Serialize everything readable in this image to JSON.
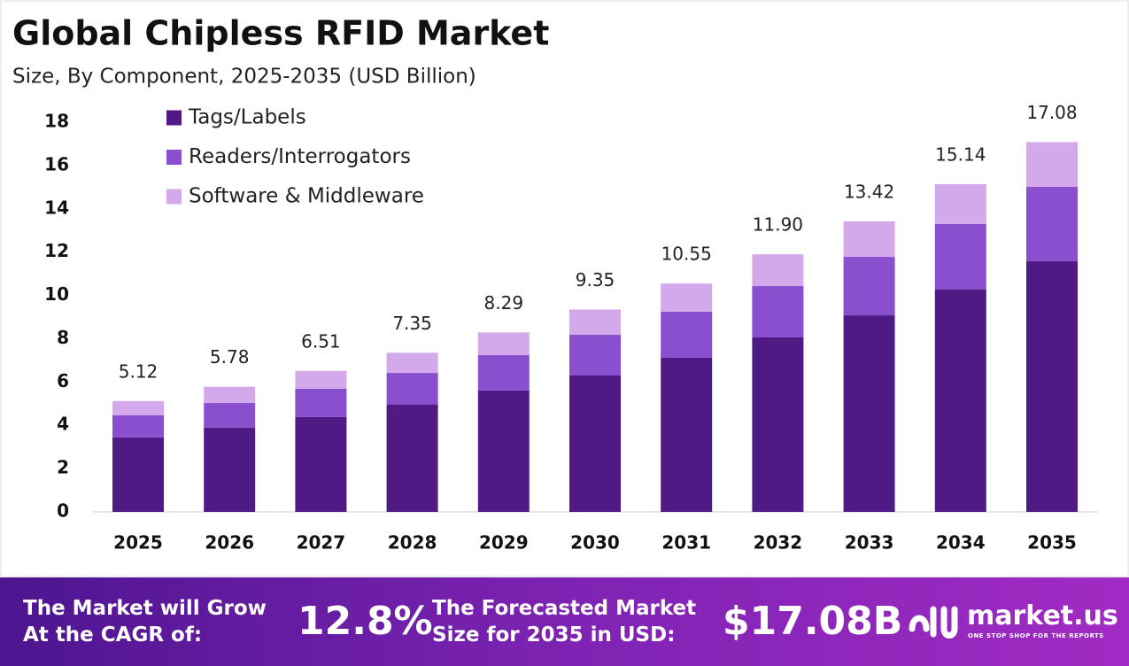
{
  "chart_data": {
    "type": "stacked-bar",
    "title": "Global Chipless RFID Market",
    "subtitle": "Size, By Component, 2025-2035 (USD Billion)",
    "categories": [
      "2025",
      "2026",
      "2027",
      "2028",
      "2029",
      "2030",
      "2031",
      "2032",
      "2033",
      "2034",
      "2035"
    ],
    "series": [
      {
        "name": "Tags/Labels",
        "color": "#4f1a83",
        "values": [
          3.44,
          3.89,
          4.38,
          4.95,
          5.61,
          6.3,
          7.12,
          8.06,
          9.08,
          10.27,
          11.58
        ]
      },
      {
        "name": "Readers/Interrogators",
        "color": "#8a4fcf",
        "values": [
          1.02,
          1.14,
          1.31,
          1.47,
          1.63,
          1.88,
          2.13,
          2.37,
          2.7,
          3.03,
          3.44
        ]
      },
      {
        "name": "Software & Middleware",
        "color": "#d3a9ec",
        "values": [
          0.66,
          0.75,
          0.82,
          0.93,
          1.05,
          1.17,
          1.3,
          1.47,
          1.64,
          1.84,
          2.06
        ]
      }
    ],
    "totals": [
      5.12,
      5.78,
      6.51,
      7.35,
      8.29,
      9.35,
      10.55,
      11.9,
      13.42,
      15.14,
      17.08
    ],
    "total_labels": [
      "5.12",
      "5.78",
      "6.51",
      "7.35",
      "8.29",
      "9.35",
      "10.55",
      "11.90",
      "13.42",
      "15.14",
      "17.08"
    ],
    "ylim": [
      0,
      18
    ],
    "yticks": [
      0,
      2,
      4,
      6,
      8,
      10,
      12,
      14,
      16,
      18
    ],
    "grid": false,
    "legend": "top-left"
  },
  "footer": {
    "cagr_label_line1": "The Market will Grow",
    "cagr_label_line2": "At the CAGR of:",
    "cagr_value": "12.8%",
    "forecast_label_line1": "The Forecasted Market",
    "forecast_label_line2": "Size for 2035 in USD:",
    "forecast_value": "$17.08B",
    "brand": "market.us",
    "tagline": "ONE STOP SHOP FOR THE REPORTS"
  }
}
